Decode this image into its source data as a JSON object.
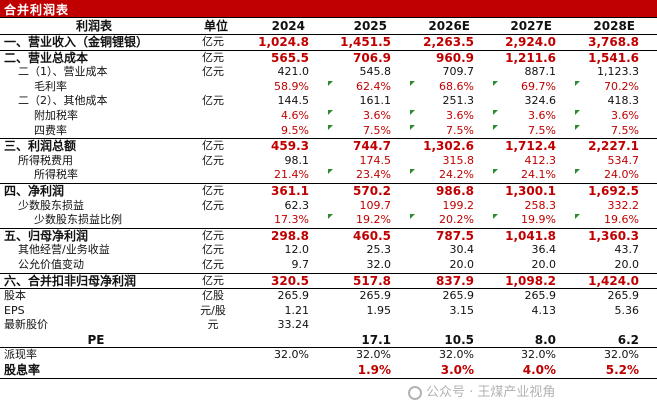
{
  "title": "合并利润表",
  "watermark": "公众号 · 王煤产业视角",
  "header": {
    "name": "利润表",
    "unit": "单位",
    "years": [
      "2024",
      "2025",
      "2026E",
      "2027E",
      "2028E"
    ]
  },
  "rows": [
    {
      "name": "一、营业收入（金铜锂银）",
      "unit": "亿元",
      "values": [
        "1,024.8",
        "1,451.5",
        "2,263.5",
        "2,924.0",
        "3,768.8"
      ],
      "indent": 0,
      "bold": true,
      "red": true,
      "section": true
    },
    {
      "name": "二、营业总成本",
      "unit": "亿元",
      "values": [
        "565.5",
        "706.9",
        "960.9",
        "1,211.6",
        "1,541.6"
      ],
      "indent": 0,
      "bold": true,
      "red": true,
      "section": true
    },
    {
      "name": "二（1）、营业成本",
      "unit": "亿元",
      "values": [
        "421.0",
        "545.8",
        "709.7",
        "887.1",
        "1,123.3"
      ],
      "indent": 1
    },
    {
      "name": "毛利率",
      "unit": "",
      "values": [
        "58.9%",
        "62.4%",
        "68.6%",
        "69.7%",
        "70.2%"
      ],
      "indent": 2,
      "red": true
    },
    {
      "name": "二（2）、其他成本",
      "unit": "亿元",
      "values": [
        "144.5",
        "161.1",
        "251.3",
        "324.6",
        "418.3"
      ],
      "indent": 1
    },
    {
      "name": "附加税率",
      "unit": "",
      "values": [
        "4.6%",
        "3.6%",
        "3.6%",
        "3.6%",
        "3.6%"
      ],
      "indent": 2,
      "red": true
    },
    {
      "name": "四费率",
      "unit": "",
      "values": [
        "9.5%",
        "7.5%",
        "7.5%",
        "7.5%",
        "7.5%"
      ],
      "indent": 2,
      "red": true
    },
    {
      "name": "三、利润总额",
      "unit": "亿元",
      "values": [
        "459.3",
        "744.7",
        "1,302.6",
        "1,712.4",
        "2,227.1"
      ],
      "indent": 0,
      "bold": true,
      "red": true,
      "section": true
    },
    {
      "name": "所得税费用",
      "unit": "亿元",
      "values": [
        "98.1",
        "174.5",
        "315.8",
        "412.3",
        "534.7"
      ],
      "indent": 1,
      "red": true
    },
    {
      "name": "所得税率",
      "unit": "",
      "values": [
        "21.4%",
        "23.4%",
        "24.2%",
        "24.1%",
        "24.0%"
      ],
      "indent": 2,
      "red": true
    },
    {
      "name": "四、净利润",
      "unit": "亿元",
      "values": [
        "361.1",
        "570.2",
        "986.8",
        "1,300.1",
        "1,692.5"
      ],
      "indent": 0,
      "bold": true,
      "red": true,
      "section": true
    },
    {
      "name": "少数股东损益",
      "unit": "亿元",
      "values": [
        "62.3",
        "109.7",
        "199.2",
        "258.3",
        "332.2"
      ],
      "indent": 1,
      "red": true
    },
    {
      "name": "少数股东损益比例",
      "unit": "",
      "values": [
        "17.3%",
        "19.2%",
        "20.2%",
        "19.9%",
        "19.6%"
      ],
      "indent": 2,
      "red": true
    },
    {
      "name": "五、归母净利润",
      "unit": "亿元",
      "values": [
        "298.8",
        "460.5",
        "787.5",
        "1,041.8",
        "1,360.3"
      ],
      "indent": 0,
      "bold": true,
      "red": true,
      "section": true
    },
    {
      "name": "其他经营/业务收益",
      "unit": "亿元",
      "values": [
        "12.0",
        "25.3",
        "30.4",
        "36.4",
        "43.7"
      ],
      "indent": 1
    },
    {
      "name": "公允价值变动",
      "unit": "亿元",
      "values": [
        "9.7",
        "32.0",
        "20.0",
        "20.0",
        "20.0"
      ],
      "indent": 1
    },
    {
      "name": "六、合并扣非归母净利润",
      "unit": "亿元",
      "values": [
        "320.5",
        "517.8",
        "837.9",
        "1,098.2",
        "1,424.0"
      ],
      "indent": 0,
      "bold": true,
      "red": true,
      "section": true
    },
    {
      "name": "股本",
      "unit": "亿股",
      "values": [
        "265.9",
        "265.9",
        "265.9",
        "265.9",
        "265.9"
      ],
      "indent": 0,
      "section": true
    },
    {
      "name": "EPS",
      "unit": "元/股",
      "values": [
        "1.21",
        "1.95",
        "3.15",
        "4.13",
        "5.36"
      ],
      "indent": 0
    },
    {
      "name": "最新股价",
      "unit": "元",
      "values": [
        "33.24",
        "",
        "",
        "",
        ""
      ],
      "indent": 0,
      "red": true
    },
    {
      "name": "PE",
      "unit": "",
      "values": [
        "",
        "17.1",
        "10.5",
        "8.0",
        "6.2"
      ],
      "indent": 0,
      "bold": true,
      "center": true
    },
    {
      "name": "派现率",
      "unit": "",
      "values": [
        "32.0%",
        "32.0%",
        "32.0%",
        "32.0%",
        "32.0%"
      ],
      "indent": 0,
      "section": true
    },
    {
      "name": "股息率",
      "unit": "",
      "values": [
        "",
        "1.9%",
        "3.0%",
        "4.0%",
        "5.2%"
      ],
      "indent": 0,
      "bold": true,
      "red": true
    }
  ]
}
